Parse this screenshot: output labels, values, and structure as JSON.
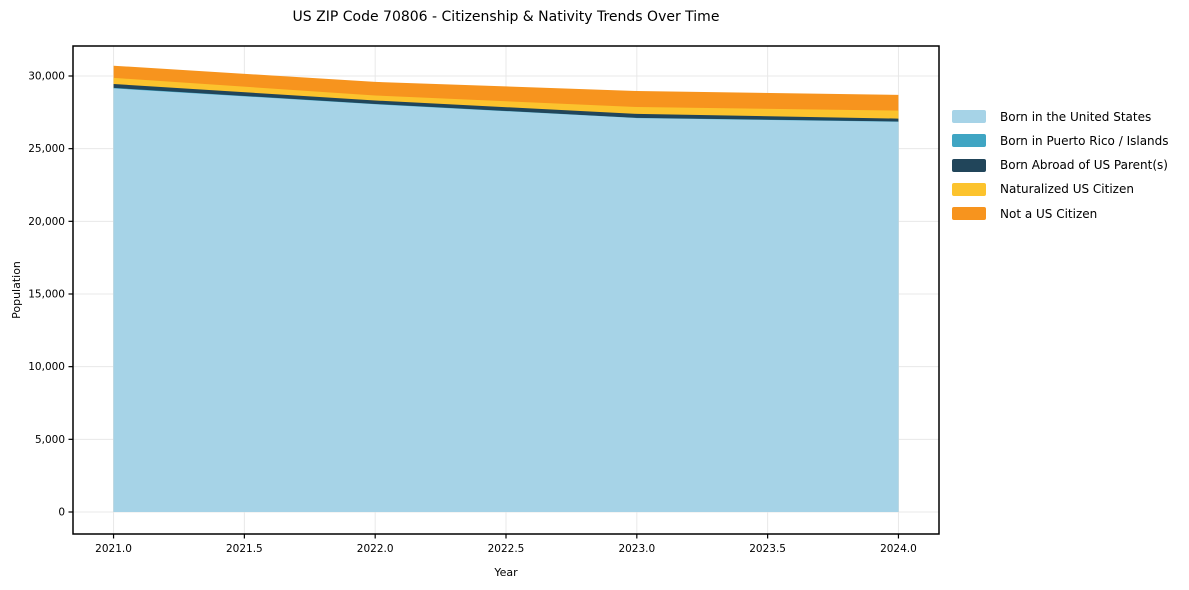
{
  "title": "US ZIP Code 70806 - Citizenship & Nativity Trends Over Time",
  "chart_data": {
    "type": "area",
    "stacked": true,
    "title": "US ZIP Code 70806 - Citizenship & Nativity Trends Over Time",
    "xlabel": "Year",
    "ylabel": "Population",
    "x": [
      2021,
      2022,
      2023,
      2024
    ],
    "series": [
      {
        "name": "Born in the United States",
        "color": "#A6D3E7",
        "values": [
          29150,
          28050,
          27100,
          26850
        ]
      },
      {
        "name": "Born in Puerto Rico / Islands",
        "color": "#3FA5C3",
        "values": [
          30,
          25,
          20,
          20
        ]
      },
      {
        "name": "Born Abroad of US Parent(s)",
        "color": "#21455A",
        "values": [
          270,
          240,
          270,
          200
        ]
      },
      {
        "name": "Naturalized US Citizen",
        "color": "#FCC32D",
        "values": [
          420,
          340,
          480,
          550
        ]
      },
      {
        "name": "Not a US Citizen",
        "color": "#F7941E",
        "values": [
          840,
          940,
          1100,
          1080
        ]
      }
    ],
    "xticks": [
      2021.0,
      2021.5,
      2022.0,
      2022.5,
      2023.0,
      2023.5,
      2024.0
    ],
    "xtick_labels": [
      "2021.0",
      "2021.5",
      "2022.0",
      "2022.5",
      "2023.0",
      "2023.5",
      "2024.0"
    ],
    "yticks": [
      0,
      5000,
      10000,
      15000,
      20000,
      25000,
      30000
    ],
    "ytick_labels": [
      "0",
      "5,000",
      "10,000",
      "15,000",
      "20,000",
      "25,000",
      "30,000"
    ],
    "xlim": [
      2020.845,
      2024.155
    ],
    "ylim": [
      -1514,
      32064
    ],
    "grid": true,
    "grid_color": "#e8e8e8",
    "spine_color": "#000000",
    "legend_position": "right"
  }
}
